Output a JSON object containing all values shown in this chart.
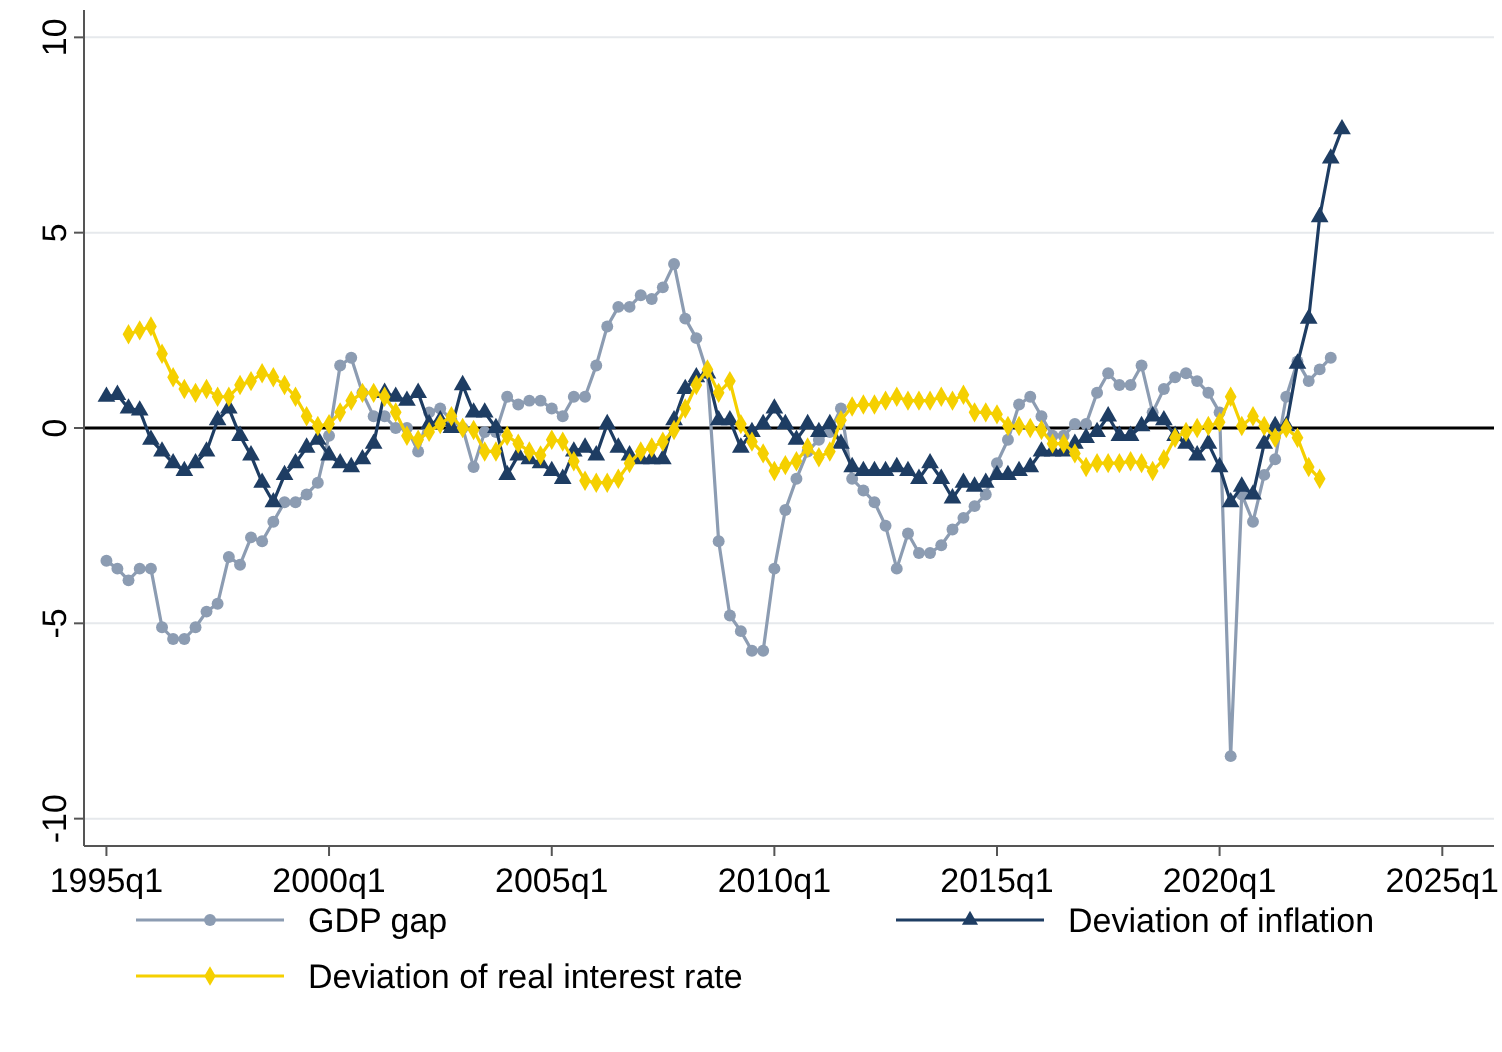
{
  "chart_data": {
    "type": "line",
    "x": [
      "1995-01",
      "1995-04",
      "1995-07",
      "1995-10",
      "1996-01",
      "1996-04",
      "1996-07",
      "1996-10",
      "1997-01",
      "1997-04",
      "1997-07",
      "1997-10",
      "1998-01",
      "1998-04",
      "1998-07",
      "1998-10",
      "1999-01",
      "1999-04",
      "1999-07",
      "1999-10",
      "2000-01",
      "2000-04",
      "2000-07",
      "2000-10",
      "2001-01",
      "2001-04",
      "2001-07",
      "2001-10",
      "2002-01",
      "2002-04",
      "2002-07",
      "2002-10",
      "2003-01",
      "2003-04",
      "2003-07",
      "2003-10",
      "2004-01",
      "2004-04",
      "2004-07",
      "2004-10",
      "2005-01",
      "2005-04",
      "2005-07",
      "2005-10",
      "2006-01",
      "2006-04",
      "2006-07",
      "2006-10",
      "2007-01",
      "2007-04",
      "2007-07",
      "2007-10",
      "2008-01",
      "2008-04",
      "2008-07",
      "2008-10",
      "2009-01",
      "2009-04",
      "2009-07",
      "2009-10",
      "2010-01",
      "2010-04",
      "2010-07",
      "2010-10",
      "2011-01",
      "2011-04",
      "2011-07",
      "2011-10",
      "2012-01",
      "2012-04",
      "2012-07",
      "2012-10",
      "2013-01",
      "2013-04",
      "2013-07",
      "2013-10",
      "2014-01",
      "2014-04",
      "2014-07",
      "2014-10",
      "2015-01",
      "2015-04",
      "2015-07",
      "2015-10",
      "2016-01",
      "2016-04",
      "2016-07",
      "2016-10",
      "2017-01",
      "2017-04",
      "2017-07",
      "2017-10",
      "2018-01",
      "2018-04",
      "2018-07",
      "2018-10",
      "2019-01",
      "2019-04",
      "2019-07",
      "2019-10",
      "2020-01",
      "2020-04",
      "2020-07",
      "2020-10",
      "2021-01",
      "2021-04",
      "2021-07",
      "2021-10",
      "2022-01",
      "2022-04",
      "2022-07",
      "2022-10"
    ],
    "series": [
      {
        "name": "GDP gap",
        "color": "#8c9cb2",
        "marker": "circle",
        "values": [
          -3.4,
          -3.6,
          -3.9,
          -3.6,
          -3.6,
          -5.1,
          -5.4,
          -5.4,
          -5.1,
          -4.7,
          -4.5,
          -3.3,
          -3.5,
          -2.8,
          -2.9,
          -2.4,
          -1.9,
          -1.9,
          -1.7,
          -1.4,
          -0.2,
          1.6,
          1.8,
          0.9,
          0.3,
          0.3,
          0.0,
          0.0,
          -0.6,
          0.4,
          0.5,
          0.2,
          0.0,
          -1.0,
          -0.1,
          -0.1,
          0.8,
          0.6,
          0.7,
          0.7,
          0.5,
          0.3,
          0.8,
          0.8,
          1.6,
          2.6,
          3.1,
          3.1,
          3.4,
          3.3,
          3.6,
          4.2,
          2.8,
          2.3,
          1.4,
          -2.9,
          -4.8,
          -5.2,
          -5.7,
          -5.7,
          -3.6,
          -2.1,
          -1.3,
          -0.6,
          -0.3,
          -0.1,
          0.5,
          -1.3,
          -1.6,
          -1.9,
          -2.5,
          -3.6,
          -2.7,
          -3.2,
          -3.2,
          -3.0,
          -2.6,
          -2.3,
          -2.0,
          -1.7,
          -0.9,
          -0.3,
          0.6,
          0.8,
          0.3,
          -0.2,
          -0.2,
          0.1,
          0.1,
          0.9,
          1.4,
          1.1,
          1.1,
          1.6,
          0.4,
          1.0,
          1.3,
          1.4,
          1.2,
          0.9,
          0.4,
          -8.4,
          -1.7,
          -2.4,
          -1.2,
          -0.8,
          0.8,
          1.7,
          1.2,
          1.5,
          1.8,
          null
        ]
      },
      {
        "name": "Deviation of inflation",
        "color": "#1e3d63",
        "marker": "triangle",
        "values": [
          0.8,
          0.85,
          0.5,
          0.45,
          -0.3,
          -0.6,
          -0.9,
          -1.1,
          -0.9,
          -0.6,
          0.2,
          0.5,
          -0.2,
          -0.7,
          -1.4,
          -1.9,
          -1.2,
          -0.9,
          -0.5,
          -0.3,
          -0.7,
          -0.9,
          -1.0,
          -0.8,
          -0.4,
          0.9,
          0.8,
          0.7,
          0.9,
          0.1,
          0.2,
          0.0,
          1.1,
          0.4,
          0.4,
          0.0,
          -1.2,
          -0.7,
          -0.8,
          -0.9,
          -1.1,
          -1.3,
          -0.6,
          -0.5,
          -0.7,
          0.1,
          -0.5,
          -0.7,
          -0.8,
          -0.8,
          -0.8,
          0.2,
          1.0,
          1.3,
          1.4,
          0.2,
          0.2,
          -0.5,
          -0.1,
          0.1,
          0.5,
          0.1,
          -0.3,
          0.1,
          -0.1,
          0.1,
          -0.4,
          -1.0,
          -1.1,
          -1.1,
          -1.1,
          -1.0,
          -1.1,
          -1.3,
          -0.9,
          -1.3,
          -1.8,
          -1.4,
          -1.5,
          -1.4,
          -1.2,
          -1.2,
          -1.1,
          -1.0,
          -0.6,
          -0.6,
          -0.6,
          -0.4,
          -0.25,
          -0.1,
          0.3,
          -0.2,
          -0.2,
          0.05,
          0.3,
          0.2,
          -0.2,
          -0.4,
          -0.7,
          -0.4,
          -1.0,
          -1.9,
          -1.5,
          -1.7,
          -0.4,
          0.05,
          0.05,
          1.65,
          2.8,
          5.4,
          6.9,
          7.65
        ]
      },
      {
        "name": "Deviation of real interest rate",
        "color": "#f5d000",
        "marker": "diamond",
        "values": [
          null,
          null,
          2.4,
          2.5,
          2.6,
          1.9,
          1.3,
          1.0,
          0.9,
          1.0,
          0.8,
          0.8,
          1.1,
          1.2,
          1.4,
          1.3,
          1.1,
          0.8,
          0.3,
          0.05,
          0.1,
          0.4,
          0.7,
          0.9,
          0.9,
          0.8,
          0.4,
          -0.2,
          -0.3,
          -0.1,
          0.1,
          0.3,
          0.0,
          -0.05,
          -0.6,
          -0.6,
          -0.2,
          -0.4,
          -0.6,
          -0.7,
          -0.3,
          -0.35,
          -0.85,
          -1.35,
          -1.4,
          -1.4,
          -1.3,
          -0.9,
          -0.6,
          -0.5,
          -0.35,
          -0.05,
          0.5,
          1.1,
          1.5,
          0.9,
          1.2,
          0.1,
          -0.35,
          -0.65,
          -1.1,
          -0.95,
          -0.85,
          -0.5,
          -0.75,
          -0.6,
          0.2,
          0.55,
          0.6,
          0.6,
          0.7,
          0.8,
          0.7,
          0.7,
          0.7,
          0.8,
          0.7,
          0.85,
          0.4,
          0.4,
          0.35,
          0.05,
          0.05,
          0.0,
          -0.05,
          -0.4,
          -0.4,
          -0.65,
          -1.0,
          -0.9,
          -0.9,
          -0.9,
          -0.85,
          -0.9,
          -1.1,
          -0.8,
          -0.25,
          -0.1,
          0.0,
          0.05,
          0.15,
          0.8,
          0.05,
          0.3,
          0.05,
          -0.25,
          0.0,
          -0.25,
          -1.0,
          -1.3,
          null,
          null
        ]
      }
    ],
    "xlim": [
      "1994-07",
      "2026-03"
    ],
    "ylim": [
      -10.7,
      10.7
    ],
    "xticks": [
      {
        "value": "1995-01",
        "label": "1995q1"
      },
      {
        "value": "2000-01",
        "label": "2000q1"
      },
      {
        "value": "2005-01",
        "label": "2005q1"
      },
      {
        "value": "2010-01",
        "label": "2010q1"
      },
      {
        "value": "2015-01",
        "label": "2015q1"
      },
      {
        "value": "2020-01",
        "label": "2020q1"
      },
      {
        "value": "2025-01",
        "label": "2025q1"
      }
    ],
    "yticks": [
      -10,
      -5,
      0,
      5,
      10
    ],
    "grid": "y",
    "legend": "bottom",
    "line_style": "solid",
    "ref_lines": [
      {
        "axis": "y",
        "value": 0,
        "color": "#000000"
      }
    ]
  }
}
